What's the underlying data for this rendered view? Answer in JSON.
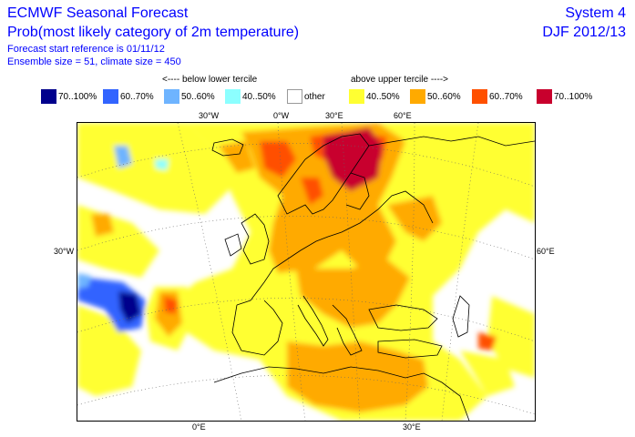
{
  "header": {
    "title": "ECMWF Seasonal Forecast",
    "subtitle": "Prob(most likely category of 2m temperature)",
    "start_reference": "Forecast start reference is 01/11/12",
    "ensemble": "Ensemble size = 51, climate size = 450",
    "system": "System 4",
    "season": "DJF 2012/13"
  },
  "legend": {
    "below_label": "<---- below lower tercile",
    "above_label": "above upper tercile ---->",
    "items": [
      {
        "label": "70..100%",
        "color": "#00008c"
      },
      {
        "label": "60..70%",
        "color": "#3264ff"
      },
      {
        "label": "50..60%",
        "color": "#6eb4ff"
      },
      {
        "label": "40..50%",
        "color": "#8cffff"
      },
      {
        "label": "other",
        "color": "#ffffff"
      },
      {
        "label": "40..50%",
        "color": "#ffff32"
      },
      {
        "label": "50..60%",
        "color": "#ffaa00"
      },
      {
        "label": "60..70%",
        "color": "#ff5000"
      },
      {
        "label": "70..100%",
        "color": "#c8002d"
      }
    ]
  },
  "axes": {
    "top": [
      "30°W",
      "0°W",
      "30°E",
      "60°E"
    ],
    "left": "30°W",
    "right": "60°E",
    "bottom": [
      "0°E",
      "30°E"
    ]
  }
}
